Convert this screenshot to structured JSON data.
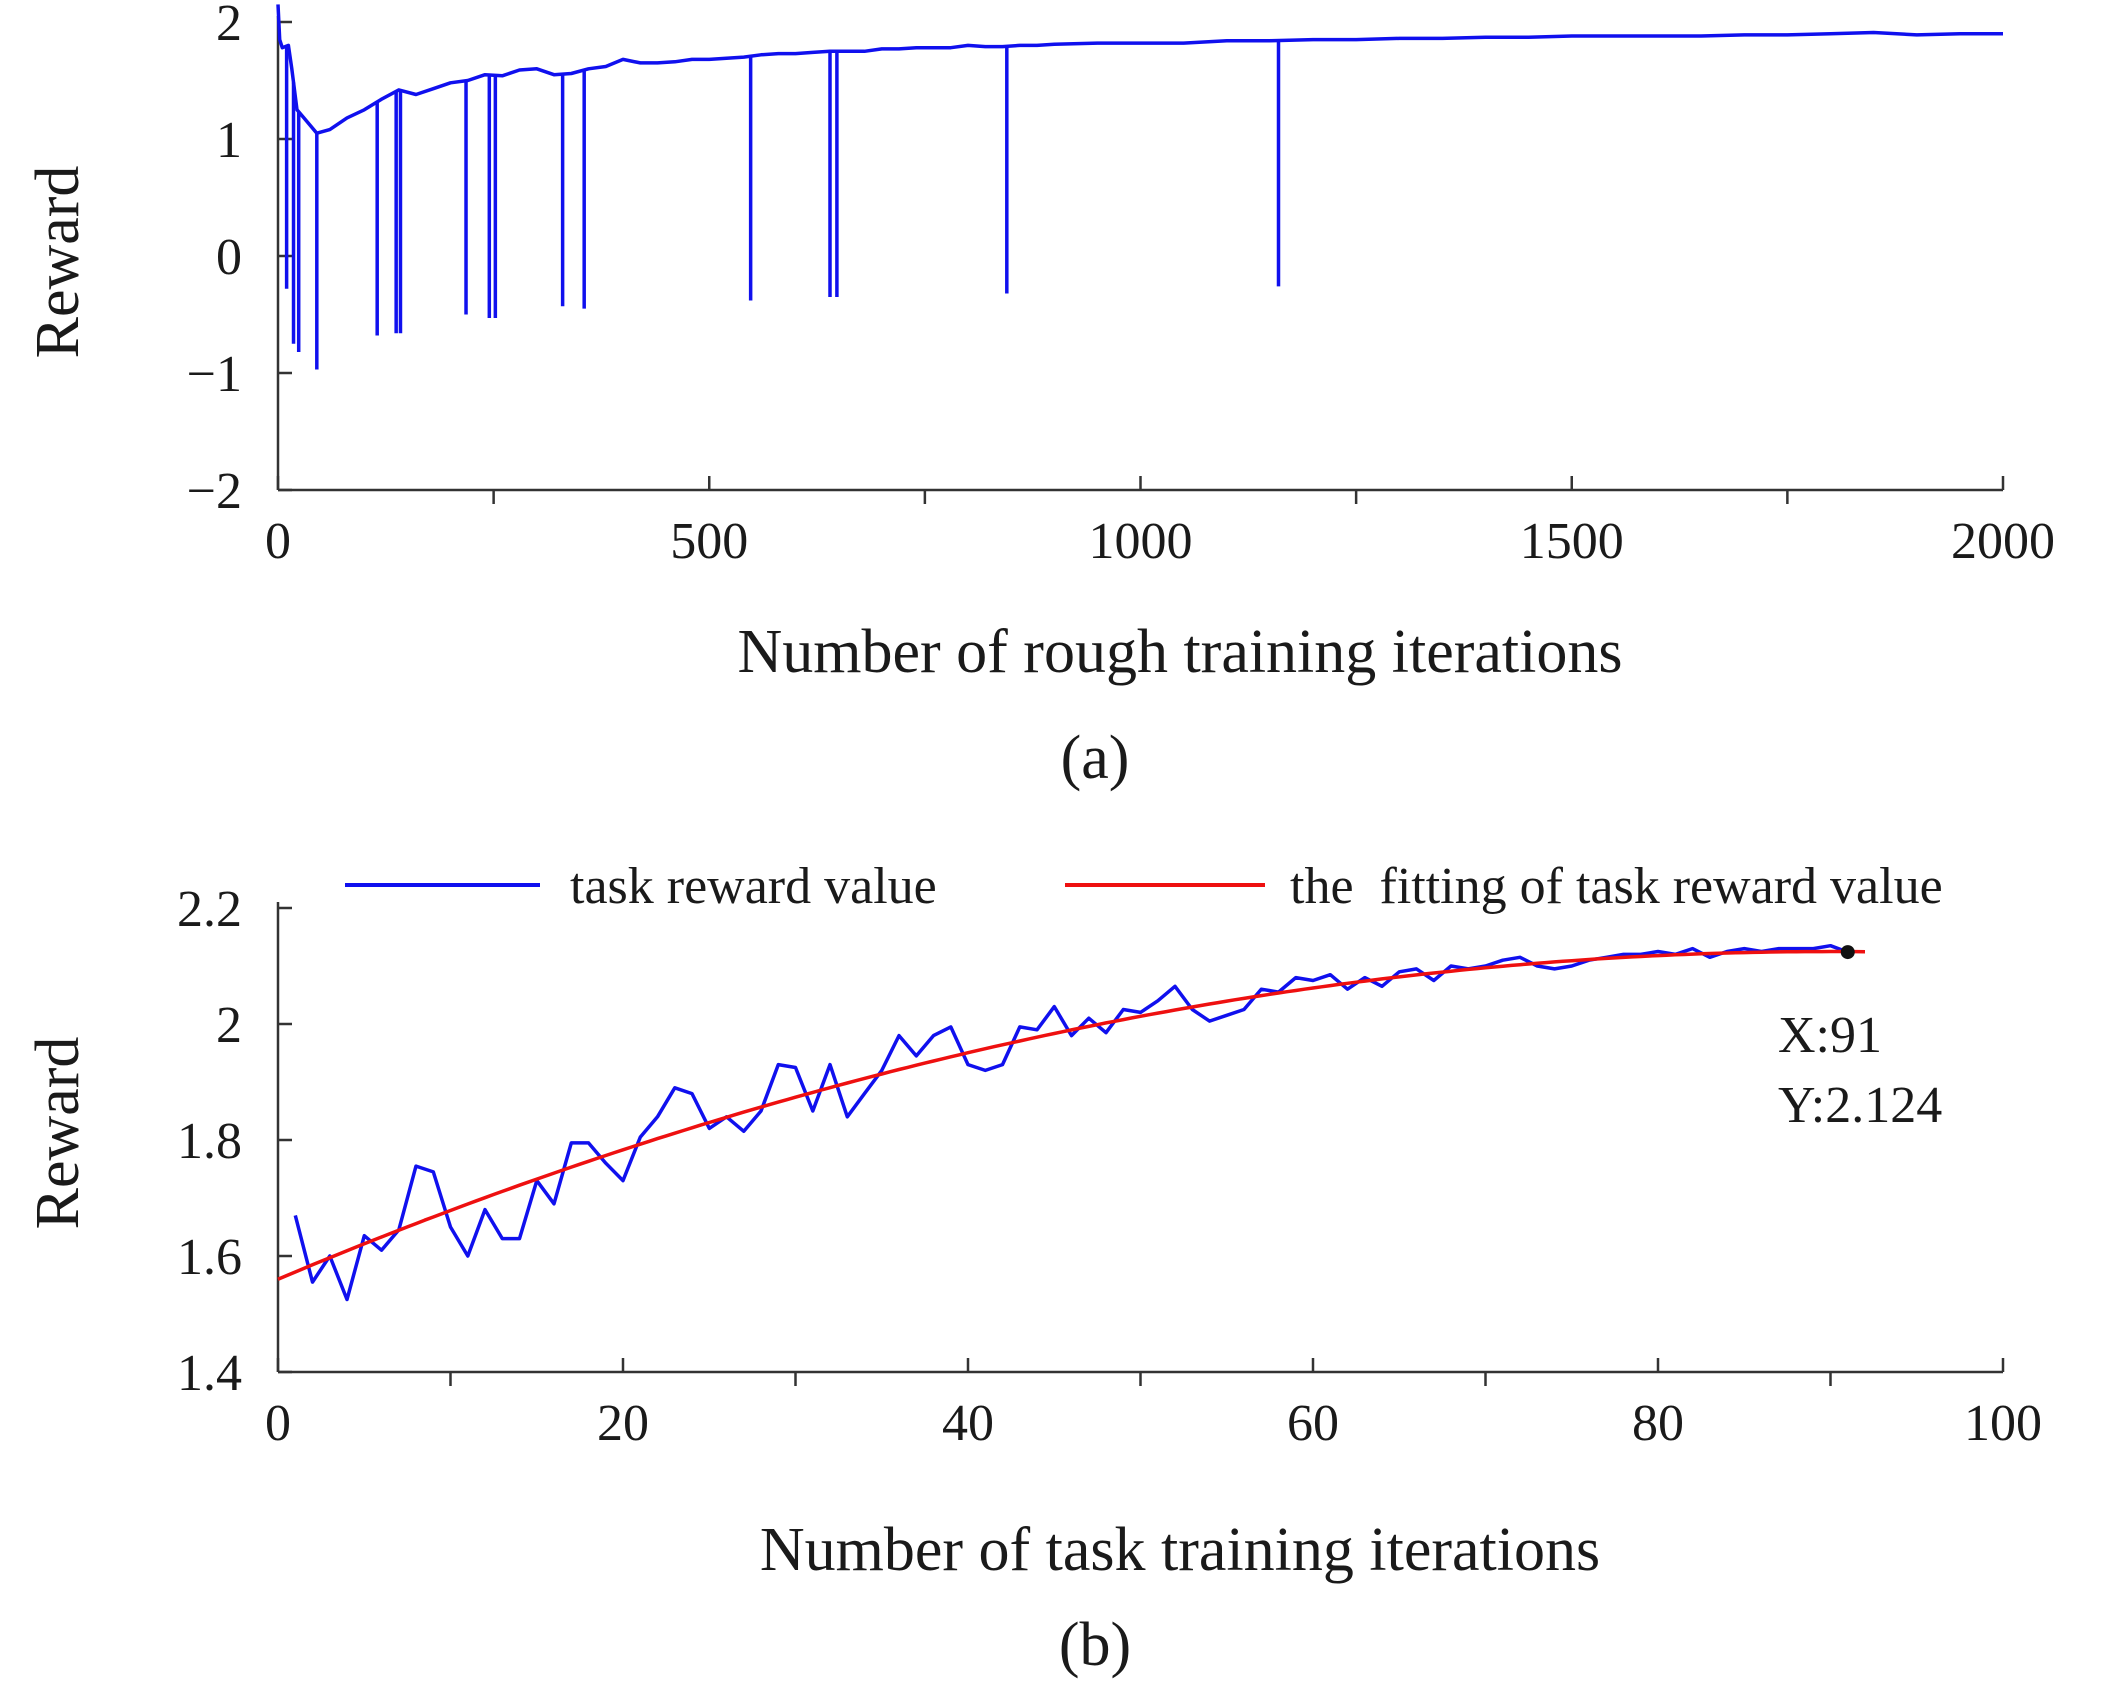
{
  "chart_data": [
    {
      "panel": "(a)",
      "type": "line",
      "xlabel": "Number of rough training iterations",
      "ylabel": "Reward",
      "xlim": [
        0,
        2000
      ],
      "ylim": [
        -2,
        2
      ],
      "xticks": [
        0,
        500,
        1000,
        1500,
        2000
      ],
      "xtick_labels": [
        "0",
        "500",
        "1000",
        "1500",
        "2000"
      ],
      "yticks": [
        -2,
        -1,
        0,
        1,
        2
      ],
      "ytick_labels": [
        "−2",
        "−1",
        "0",
        "1",
        "2"
      ],
      "series": [
        {
          "name": "reward",
          "color": "#1010ee",
          "x": [
            0,
            2,
            5,
            12,
            16,
            22,
            30,
            45,
            60,
            80,
            100,
            120,
            140,
            160,
            180,
            200,
            220,
            240,
            260,
            280,
            300,
            320,
            340,
            360,
            380,
            400,
            420,
            440,
            460,
            480,
            500,
            520,
            540,
            560,
            580,
            600,
            620,
            640,
            660,
            680,
            700,
            720,
            740,
            760,
            780,
            800,
            820,
            840,
            860,
            880,
            900,
            950,
            1000,
            1050,
            1100,
            1150,
            1200,
            1250,
            1300,
            1350,
            1400,
            1450,
            1500,
            1550,
            1600,
            1650,
            1700,
            1750,
            1800,
            1850,
            1900,
            1950,
            2000
          ],
          "y": [
            2.15,
            1.85,
            1.78,
            1.8,
            1.6,
            1.25,
            1.18,
            1.05,
            1.08,
            1.18,
            1.25,
            1.34,
            1.42,
            1.38,
            1.43,
            1.48,
            1.5,
            1.55,
            1.54,
            1.59,
            1.6,
            1.55,
            1.56,
            1.6,
            1.62,
            1.68,
            1.65,
            1.65,
            1.66,
            1.68,
            1.68,
            1.69,
            1.7,
            1.72,
            1.73,
            1.73,
            1.74,
            1.75,
            1.75,
            1.75,
            1.77,
            1.77,
            1.78,
            1.78,
            1.78,
            1.8,
            1.79,
            1.79,
            1.8,
            1.8,
            1.81,
            1.82,
            1.82,
            1.82,
            1.84,
            1.84,
            1.85,
            1.85,
            1.86,
            1.86,
            1.87,
            1.87,
            1.88,
            1.88,
            1.88,
            1.88,
            1.89,
            1.89,
            1.9,
            1.91,
            1.89,
            1.9,
            1.9
          ],
          "spikes": [
            {
              "x": 10,
              "y": -0.28
            },
            {
              "x": 18,
              "y": -0.75
            },
            {
              "x": 24,
              "y": -0.82
            },
            {
              "x": 45,
              "y": -0.97
            },
            {
              "x": 115,
              "y": -0.68
            },
            {
              "x": 137,
              "y": -0.66
            },
            {
              "x": 142,
              "y": -0.66
            },
            {
              "x": 218,
              "y": -0.5
            },
            {
              "x": 245,
              "y": -0.53
            },
            {
              "x": 252,
              "y": -0.53
            },
            {
              "x": 330,
              "y": -0.43
            },
            {
              "x": 355,
              "y": -0.45
            },
            {
              "x": 548,
              "y": -0.38
            },
            {
              "x": 640,
              "y": -0.35
            },
            {
              "x": 648,
              "y": -0.35
            },
            {
              "x": 845,
              "y": -0.32
            },
            {
              "x": 1160,
              "y": -0.26
            }
          ]
        }
      ]
    },
    {
      "panel": "(b)",
      "type": "line",
      "xlabel": "Number of task training iterations",
      "ylabel": "Reward",
      "xlim": [
        0,
        100
      ],
      "ylim": [
        1.4,
        2.2
      ],
      "xticks": [
        0,
        20,
        40,
        60,
        80,
        100
      ],
      "xtick_labels": [
        "0",
        "20",
        "40",
        "60",
        "80",
        "100"
      ],
      "yticks": [
        1.4,
        1.6,
        1.8,
        2.0,
        2.2
      ],
      "ytick_labels": [
        "1.4",
        "1.6",
        "1.8",
        "2",
        "2.2"
      ],
      "legend": "top",
      "series": [
        {
          "name": "task reward value",
          "color": "#1010ee",
          "x": [
            1,
            2,
            3,
            4,
            5,
            6,
            7,
            8,
            9,
            10,
            11,
            12,
            13,
            14,
            15,
            16,
            17,
            18,
            19,
            20,
            21,
            22,
            23,
            24,
            25,
            26,
            27,
            28,
            29,
            30,
            31,
            32,
            33,
            34,
            35,
            36,
            37,
            38,
            39,
            40,
            41,
            42,
            43,
            44,
            45,
            46,
            47,
            48,
            49,
            50,
            51,
            52,
            53,
            54,
            55,
            56,
            57,
            58,
            59,
            60,
            61,
            62,
            63,
            64,
            65,
            66,
            67,
            68,
            69,
            70,
            71,
            72,
            73,
            74,
            75,
            76,
            77,
            78,
            79,
            80,
            81,
            82,
            83,
            84,
            85,
            86,
            87,
            88,
            89,
            90,
            91
          ],
          "y": [
            1.67,
            1.555,
            1.6,
            1.525,
            1.635,
            1.61,
            1.645,
            1.755,
            1.745,
            1.65,
            1.6,
            1.68,
            1.63,
            1.63,
            1.73,
            1.69,
            1.795,
            1.795,
            1.76,
            1.73,
            1.805,
            1.84,
            1.89,
            1.88,
            1.82,
            1.84,
            1.815,
            1.85,
            1.93,
            1.925,
            1.85,
            1.93,
            1.84,
            1.88,
            1.92,
            1.98,
            1.945,
            1.98,
            1.995,
            1.93,
            1.92,
            1.93,
            1.995,
            1.99,
            2.03,
            1.98,
            2.01,
            1.985,
            2.025,
            2.02,
            2.04,
            2.065,
            2.025,
            2.005,
            2.015,
            2.025,
            2.06,
            2.055,
            2.08,
            2.075,
            2.085,
            2.06,
            2.08,
            2.065,
            2.09,
            2.095,
            2.075,
            2.1,
            2.095,
            2.1,
            2.11,
            2.115,
            2.1,
            2.095,
            2.1,
            2.11,
            2.115,
            2.12,
            2.12,
            2.125,
            2.12,
            2.13,
            2.115,
            2.125,
            2.13,
            2.125,
            2.13,
            2.13,
            2.13,
            2.135,
            2.124
          ]
        },
        {
          "name": "the  fitting of task reward value",
          "color": "#ee1010",
          "fit": "quadratic",
          "coefficients": [
            1.56,
            0.01255,
            -6.97e-05
          ],
          "x_range": [
            0,
            92
          ]
        }
      ],
      "annotations": [
        {
          "x": 91,
          "y": 2.124,
          "lines": [
            "X:91",
            "Y:2.124"
          ]
        }
      ]
    }
  ]
}
